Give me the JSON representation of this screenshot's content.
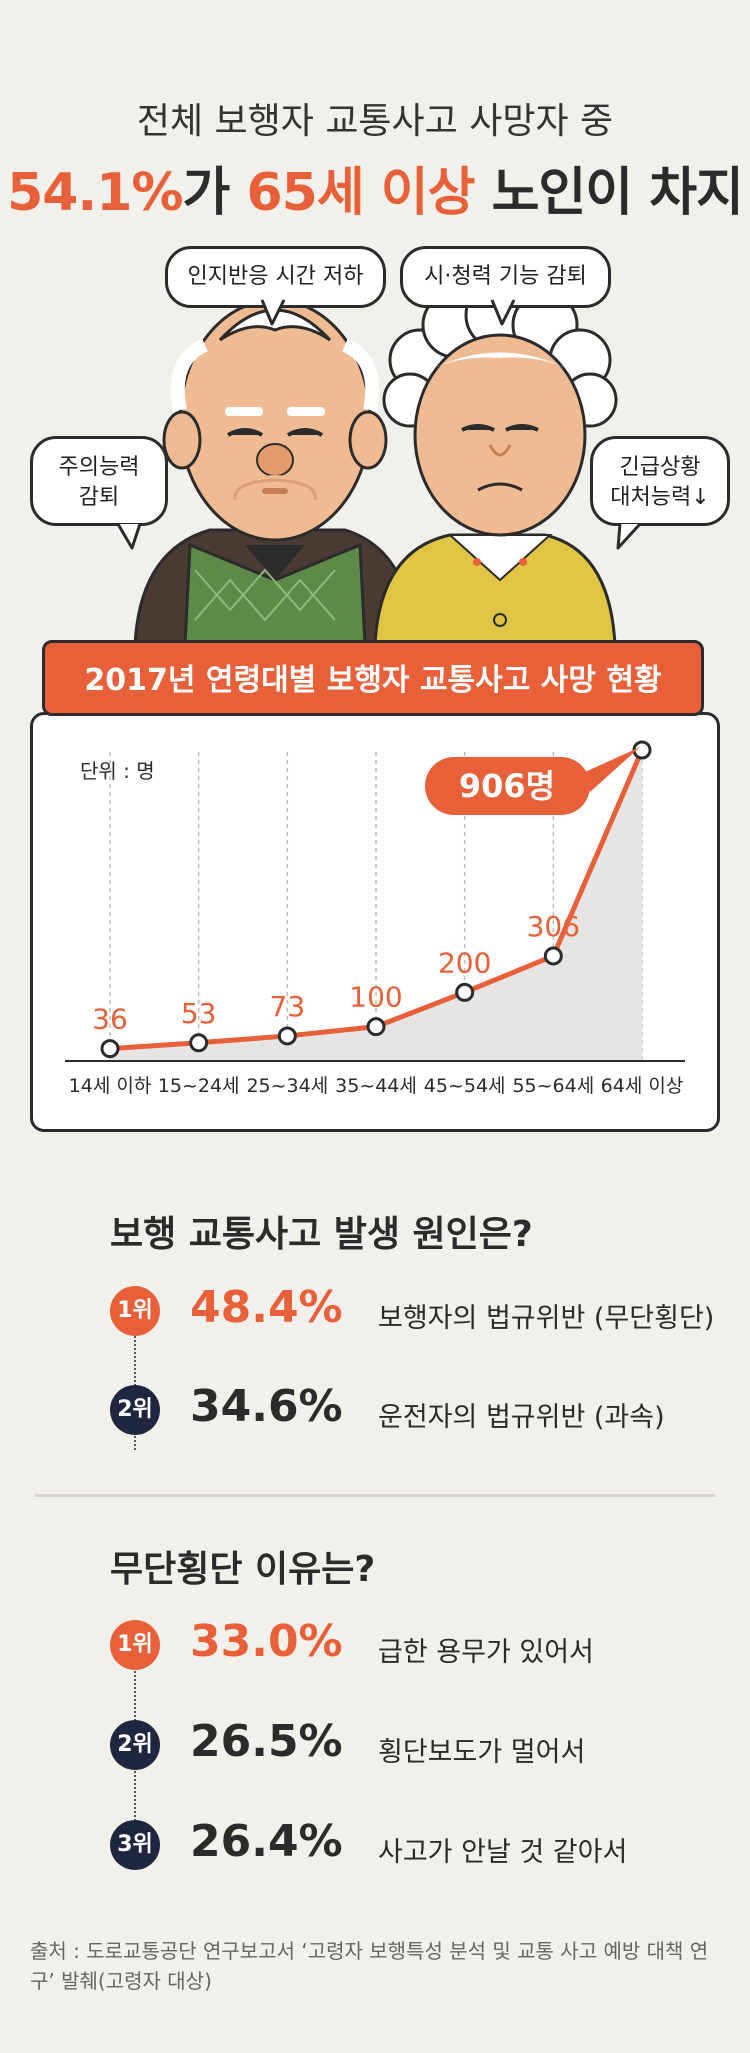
{
  "header": {
    "line1": "전체 보행자 교통사고 사망자 중",
    "line2_a": "54.1%",
    "line2_b": "가 ",
    "line2_c": "65세 이상",
    "line2_d": " 노인이 차지"
  },
  "bubbles": {
    "cognitive": "인지반응 시간 저하",
    "sight": "시·청력 기능 감퇴",
    "attention_1": "주의능력",
    "attention_2": "감퇴",
    "emergency_1": "긴급상황",
    "emergency_2": "대처능력↓"
  },
  "banner": "2017년 연령대별 보행자 교통사고 사망 현황",
  "unit": "단위 : 명",
  "highlight": "906명",
  "colors": {
    "accent": "#e8603a",
    "navy": "#1f2740",
    "area": "#e6e5e3"
  },
  "chart_data": {
    "type": "line",
    "categories": [
      "14세 이하",
      "15~24세",
      "25~34세",
      "35~44세",
      "45~54세",
      "55~64세",
      "64세 이상"
    ],
    "values": [
      36,
      53,
      73,
      100,
      200,
      306,
      906
    ],
    "value_labels": [
      "36",
      "53",
      "73",
      "100",
      "200",
      "306",
      ""
    ],
    "title": "2017년 연령대별 보행자 교통사고 사망 현황",
    "ylabel": "단위 : 명",
    "ylim": [
      0,
      906
    ],
    "grid": "vertical dashed"
  },
  "cause": {
    "title": "보행 교통사고 발생 원인은?",
    "items": [
      {
        "rank": "1위",
        "pct": "48.4%",
        "desc": "보행자의 법규위반 (무단횡단)"
      },
      {
        "rank": "2위",
        "pct": "34.6%",
        "desc": "운전자의 법규위반 (과속)"
      }
    ]
  },
  "reason": {
    "title": "무단횡단 이유는?",
    "items": [
      {
        "rank": "1위",
        "pct": "33.0%",
        "desc": "급한 용무가 있어서"
      },
      {
        "rank": "2위",
        "pct": "26.5%",
        "desc": "횡단보도가 멀어서"
      },
      {
        "rank": "3위",
        "pct": "26.4%",
        "desc": "사고가 안날 것 같아서"
      }
    ]
  },
  "source": "출처 : 도로교통공단 연구보고서 ‘고령자 보행특성 분석 및 교통 사고 예방 대책 연구’ 발췌(고령자 대상)"
}
